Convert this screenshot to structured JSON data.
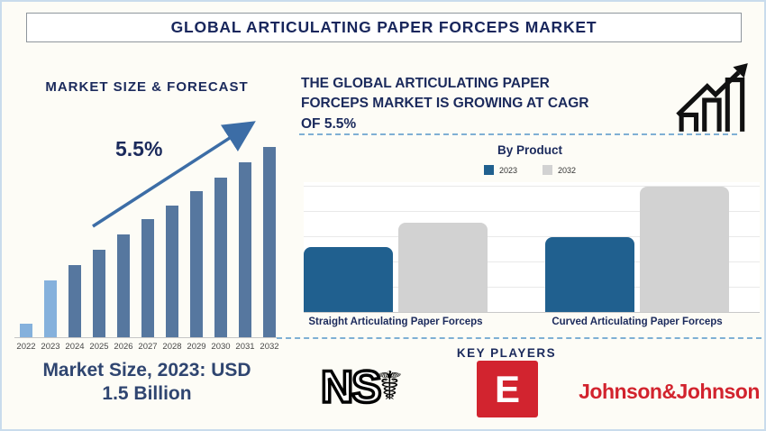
{
  "page": {
    "title": "GLOBAL ARTICULATING PAPER FORCEPS MARKET"
  },
  "forecast": {
    "caption_lines": [
      "Market Size, 2023: USD",
      "1.5 Billion"
    ]
  },
  "growth_note": {
    "lines": [
      "THE GLOBAL ARTICULATING PAPER",
      "FORCEPS MARKET IS GROWING AT CAGR",
      "OF 5.5%"
    ]
  },
  "key_players": {
    "title": "KEY PLAYERS",
    "logos": [
      {
        "name": "NS (medical caduceus logo)",
        "text": "NS",
        "symbol": "☤"
      },
      {
        "name": "E (red square logo)",
        "text": "E"
      },
      {
        "name": "Johnson & Johnson",
        "text": "Johnson&Johnson"
      }
    ]
  },
  "colors": {
    "navy": "#1b2a5c",
    "caption_blue": "#2f4570",
    "arrow_blue": "#3c6da6",
    "dashed_blue": "#7fb0d4",
    "logo_red": "#d2242f",
    "jnj_red": "#d2232e"
  },
  "chart_data": [
    {
      "type": "bar",
      "title": "MARKET SIZE & FORECAST",
      "categories": [
        "2022",
        "2023",
        "2024",
        "2025",
        "2026",
        "2027",
        "2028",
        "2029",
        "2030",
        "2031",
        "2032"
      ],
      "values": [
        7,
        30,
        38,
        46,
        54,
        62,
        69,
        77,
        84,
        92,
        100
      ],
      "unit": "relative height (no value axis shown)",
      "annotation": "5.5%",
      "highlight_categories": [
        "2022",
        "2023"
      ],
      "bar_color": "#56779f",
      "highlight_color": "#85b1dc",
      "grid": false,
      "legend": false,
      "xlabel": "",
      "ylabel": ""
    },
    {
      "type": "bar",
      "title": "By Product",
      "categories": [
        "Straight Articulating Paper Forceps",
        "Curved Articulating Paper Forceps"
      ],
      "series": [
        {
          "name": "2023",
          "values": [
            52,
            60
          ],
          "color": "#20608f"
        },
        {
          "name": "2032",
          "values": [
            71,
            100
          ],
          "color": "#d2d2d2"
        }
      ],
      "unit": "relative height (no value axis shown)",
      "grid": true,
      "legend_position": "top",
      "xlabel": "",
      "ylabel": ""
    }
  ]
}
